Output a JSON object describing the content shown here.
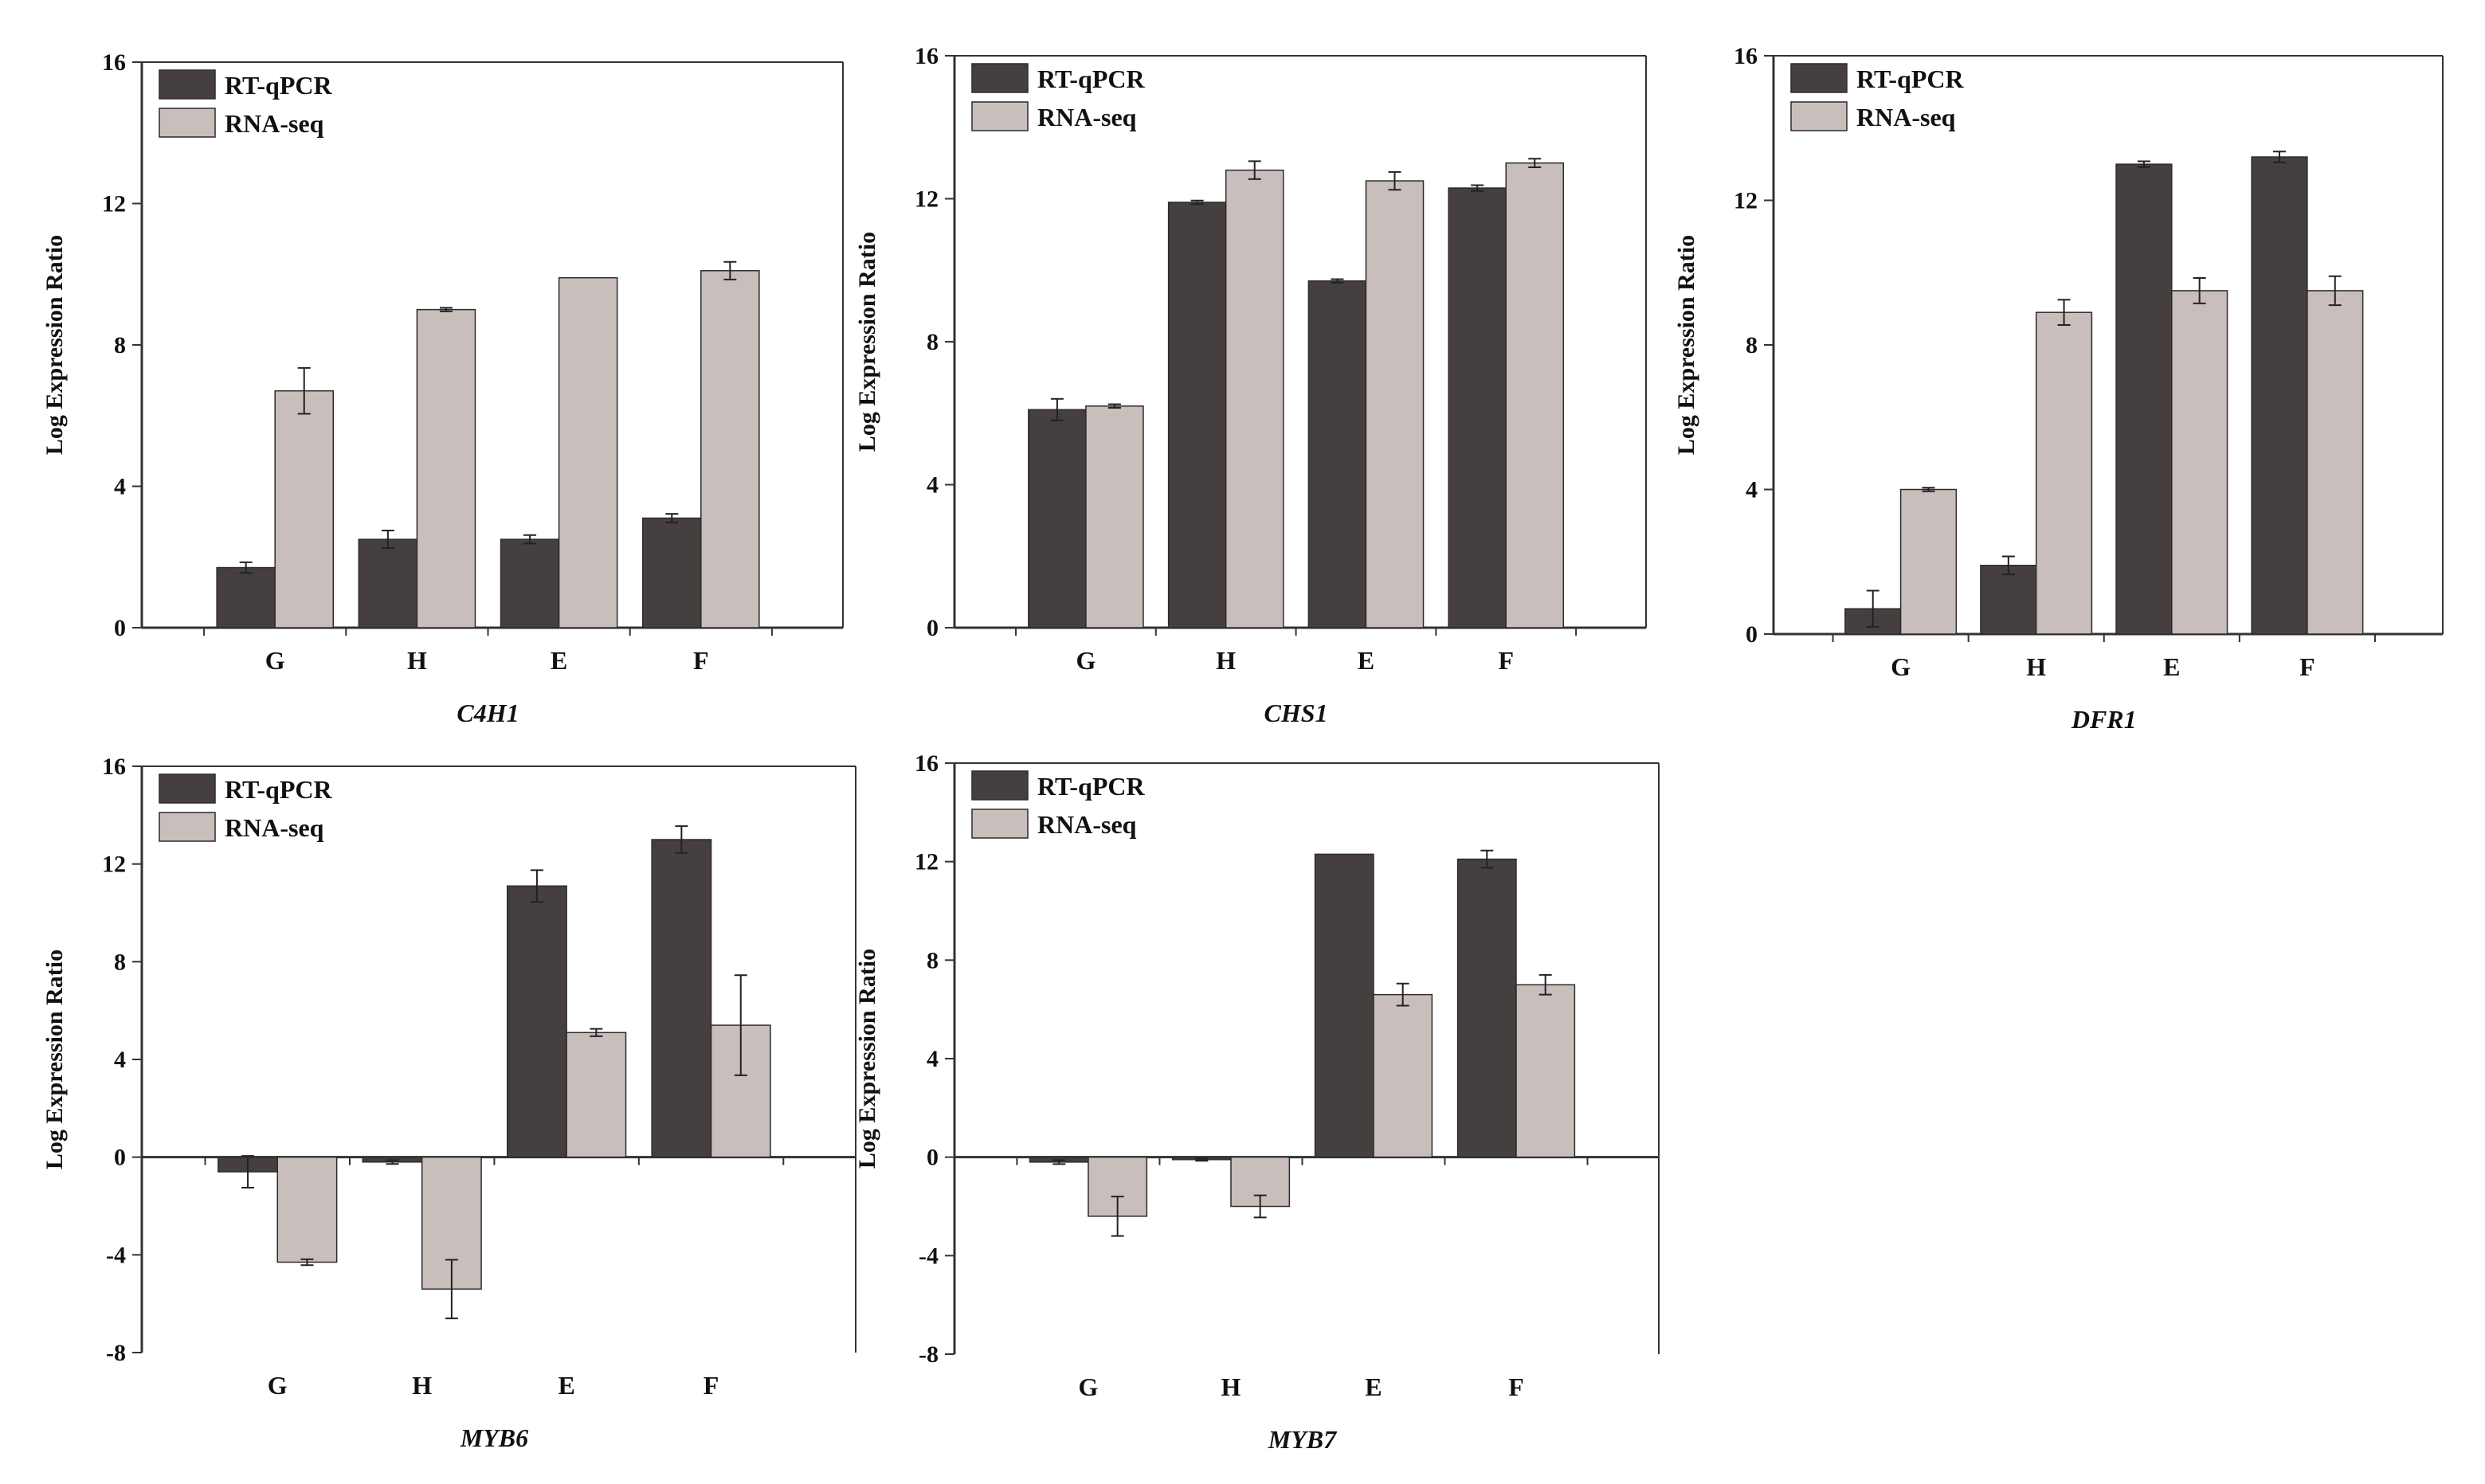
{
  "colors": {
    "rtqpcr": "#453f40",
    "rnaseq": "#c8bebb",
    "axis": "#333333"
  },
  "legend": {
    "series_1": "RT-qPCR",
    "series_2": "RNA-seq"
  },
  "chart_data": [
    {
      "type": "bar",
      "title": "C4H1",
      "ylabel": "Log Expression Ratio",
      "ylim": [
        0,
        16
      ],
      "yticks": [
        0,
        4,
        8,
        12,
        16
      ],
      "yticklabels": [
        "0",
        "4",
        "8",
        "12",
        "16"
      ],
      "categories": [
        "G",
        "H",
        "E",
        "F"
      ],
      "series": [
        {
          "name": "RT-qPCR",
          "values": [
            1.7,
            2.5,
            2.5,
            3.1
          ],
          "errors": [
            0.15,
            0.25,
            0.12,
            0.12
          ]
        },
        {
          "name": "RNA-seq",
          "values": [
            6.7,
            9.0,
            9.9,
            10.1
          ],
          "errors": [
            0.65,
            0.05,
            0.0,
            0.25
          ]
        }
      ]
    },
    {
      "type": "bar",
      "title": "CHS1",
      "ylabel": "Log Expression Ratio",
      "ylim": [
        0,
        16
      ],
      "yticks": [
        0,
        4,
        8,
        12,
        16
      ],
      "yticklabels": [
        "0",
        "4",
        "8",
        "12",
        "16"
      ],
      "categories": [
        "G",
        "H",
        "E",
        "F"
      ],
      "series": [
        {
          "name": "RT-qPCR",
          "values": [
            6.1,
            11.9,
            9.7,
            12.3
          ],
          "errors": [
            0.3,
            0.05,
            0.05,
            0.08
          ]
        },
        {
          "name": "RNA-seq",
          "values": [
            6.2,
            12.8,
            12.5,
            13.0
          ],
          "errors": [
            0.05,
            0.25,
            0.25,
            0.12
          ]
        }
      ]
    },
    {
      "type": "bar",
      "title": "DFR1",
      "ylabel": "Log Expression Ratio",
      "ylim": [
        0,
        16
      ],
      "yticks": [
        0,
        4,
        8,
        12,
        16
      ],
      "yticklabels": [
        "0",
        "4",
        "8",
        "12",
        "16"
      ],
      "categories": [
        "G",
        "H",
        "E",
        "F"
      ],
      "series": [
        {
          "name": "RT-qPCR",
          "values": [
            0.7,
            1.9,
            13.0,
            13.2
          ],
          "errors": [
            0.5,
            0.25,
            0.08,
            0.15
          ]
        },
        {
          "name": "RNA-seq",
          "values": [
            4.0,
            8.9,
            9.5,
            9.5
          ],
          "errors": [
            0.05,
            0.35,
            0.35,
            0.4
          ]
        }
      ]
    },
    {
      "type": "bar",
      "title": "MYB6",
      "ylabel": "Log Expression Ratio",
      "ylim": [
        -8,
        16
      ],
      "yticks": [
        -8,
        -4,
        0,
        4,
        8,
        12,
        16
      ],
      "yticklabels": [
        "-8",
        "-4",
        "0",
        "4",
        "8",
        "12",
        "16"
      ],
      "categories": [
        "G",
        "H",
        "E",
        "F"
      ],
      "series": [
        {
          "name": "RT-qPCR",
          "values": [
            -0.6,
            -0.2,
            11.1,
            13.0
          ],
          "errors": [
            0.65,
            0.08,
            0.65,
            0.55
          ]
        },
        {
          "name": "RNA-seq",
          "values": [
            -4.3,
            -5.4,
            5.1,
            5.4
          ],
          "errors": [
            0.12,
            1.2,
            0.15,
            2.05
          ]
        }
      ]
    },
    {
      "type": "bar",
      "title": "MYB7",
      "ylabel": "Log Expression Ratio",
      "ylim": [
        -8,
        16
      ],
      "yticks": [
        -8,
        -4,
        0,
        4,
        8,
        12,
        16
      ],
      "yticklabels": [
        "-8",
        "-4",
        "0",
        "4",
        "8",
        "12",
        "16"
      ],
      "categories": [
        "G",
        "H",
        "E",
        "F"
      ],
      "series": [
        {
          "name": "RT-qPCR",
          "values": [
            -0.2,
            -0.1,
            12.3,
            12.1
          ],
          "errors": [
            0.08,
            0.05,
            0.0,
            0.35
          ]
        },
        {
          "name": "RNA-seq",
          "values": [
            -2.4,
            -2.0,
            6.6,
            7.0
          ],
          "errors": [
            0.8,
            0.45,
            0.45,
            0.4
          ]
        }
      ]
    }
  ]
}
